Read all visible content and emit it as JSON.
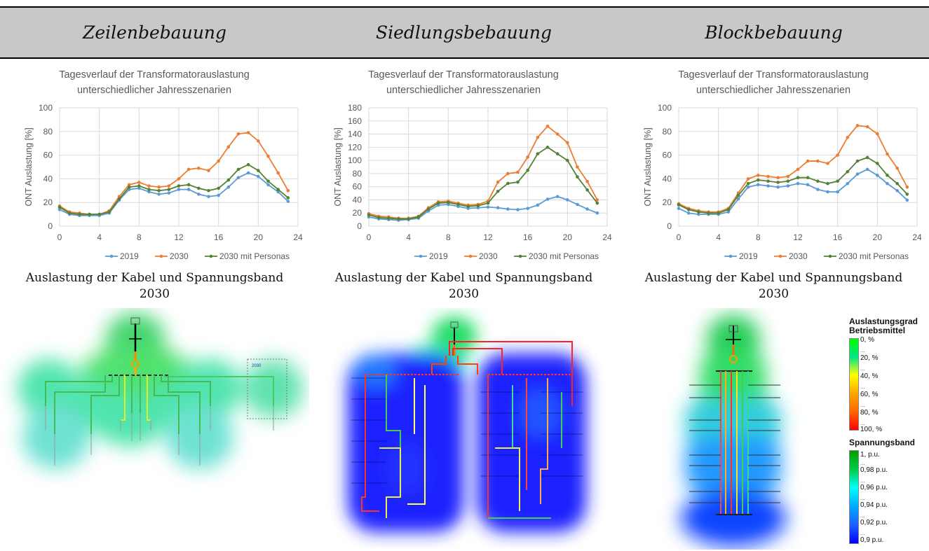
{
  "headers": [
    "Zeilenbebauung",
    "Siedlungsbebauung",
    "Blockbebauung"
  ],
  "map_titles": [
    {
      "line1": "Auslastung der Kabel und Spannungsband",
      "line2": "2030"
    },
    {
      "line1": "Auslastung der Kabel und Spannungsband",
      "line2": "2030"
    },
    {
      "line1": "Auslastung der Kabel und Spannungsband",
      "line2": "2030"
    }
  ],
  "map1_box_label": "2030",
  "chart_data": [
    {
      "type": "line",
      "title": "Tagesverlauf der Transformatorauslastung unterschiedlicher Jahresszenarien",
      "title_lines": [
        "Tagesverlauf der Transformatorauslastung",
        "unterschiedlicher Jahresszenarien"
      ],
      "ylabel": "ONT Auslastung [%]",
      "xlim": [
        0,
        24
      ],
      "ylim": [
        0,
        100
      ],
      "xticks": [
        0,
        4,
        8,
        12,
        16,
        20,
        24
      ],
      "yticks": [
        0,
        20,
        40,
        60,
        80,
        100
      ],
      "grid": true,
      "legend": "bottom",
      "x": [
        0,
        1,
        2,
        3,
        4,
        5,
        6,
        7,
        8,
        9,
        10,
        11,
        12,
        13,
        14,
        15,
        16,
        17,
        18,
        19,
        20,
        21,
        22,
        23
      ],
      "series": [
        {
          "name": "2019",
          "color": "#5b9bd5",
          "values": [
            14,
            10,
            9,
            9,
            9,
            11,
            22,
            31,
            32,
            29,
            27,
            28,
            31,
            31,
            27,
            25,
            26,
            33,
            41,
            45,
            42,
            35,
            29,
            21
          ]
        },
        {
          "name": "2030",
          "color": "#ed7d31",
          "values": [
            17,
            12,
            11,
            10,
            10,
            13,
            25,
            35,
            37,
            34,
            33,
            34,
            40,
            48,
            49,
            47,
            55,
            67,
            78,
            79,
            72,
            59,
            45,
            30
          ]
        },
        {
          "name": "2030 mit Personas",
          "color": "#548235",
          "values": [
            16,
            11,
            10,
            10,
            10,
            12,
            23,
            33,
            34,
            31,
            30,
            31,
            34,
            35,
            32,
            30,
            32,
            39,
            48,
            52,
            47,
            38,
            31,
            24
          ]
        }
      ]
    },
    {
      "type": "line",
      "title": "Tagesverlauf der Transformatorauslastung unterschiedlicher Jahresszenarien",
      "title_lines": [
        "Tagesverlauf der Transformatorauslastung",
        "unterschiedlicher Jahresszenarien"
      ],
      "ylabel": "ONT Auslastung [%]",
      "xlim": [
        0,
        24
      ],
      "ylim": [
        0,
        180
      ],
      "xticks": [
        0,
        4,
        8,
        12,
        16,
        20,
        24
      ],
      "yticks": [
        0,
        20,
        40,
        60,
        80,
        100,
        120,
        140,
        160,
        180
      ],
      "grid": true,
      "legend": "bottom",
      "x": [
        0,
        1,
        2,
        3,
        4,
        5,
        6,
        7,
        8,
        9,
        10,
        11,
        12,
        13,
        14,
        15,
        16,
        17,
        18,
        19,
        20,
        21,
        22,
        23
      ],
      "series": [
        {
          "name": "2019",
          "color": "#5b9bd5",
          "values": [
            14,
            11,
            10,
            9,
            10,
            12,
            23,
            32,
            33,
            30,
            27,
            28,
            29,
            28,
            26,
            25,
            27,
            32,
            41,
            45,
            40,
            33,
            26,
            20
          ]
        },
        {
          "name": "2030",
          "color": "#ed7d31",
          "values": [
            19,
            15,
            14,
            12,
            12,
            15,
            28,
            37,
            38,
            35,
            32,
            33,
            38,
            67,
            80,
            82,
            105,
            135,
            152,
            140,
            127,
            90,
            68,
            40
          ]
        },
        {
          "name": "2030 mit Personas",
          "color": "#548235",
          "values": [
            17,
            13,
            12,
            11,
            11,
            14,
            26,
            35,
            36,
            33,
            30,
            31,
            35,
            53,
            65,
            67,
            85,
            110,
            120,
            110,
            100,
            75,
            55,
            35
          ]
        }
      ]
    },
    {
      "type": "line",
      "title": "Tagesverlauf der Transformatorauslastung unterschiedlicher Jahresszenarien",
      "title_lines": [
        "Tagesverlauf der Transformatorauslastung",
        "unterschiedlicher Jahresszenarien"
      ],
      "ylabel": "ONT Auslastung [%]",
      "xlim": [
        0,
        24
      ],
      "ylim": [
        0,
        100
      ],
      "xticks": [
        0,
        4,
        8,
        12,
        16,
        20,
        24
      ],
      "yticks": [
        0,
        20,
        40,
        60,
        80,
        100
      ],
      "grid": true,
      "legend": "bottom",
      "x": [
        0,
        1,
        2,
        3,
        4,
        5,
        6,
        7,
        8,
        9,
        10,
        11,
        12,
        13,
        14,
        15,
        16,
        17,
        18,
        19,
        20,
        21,
        22,
        23
      ],
      "series": [
        {
          "name": "2019",
          "color": "#5b9bd5",
          "values": [
            15,
            11,
            10,
            10,
            10,
            12,
            23,
            33,
            35,
            34,
            33,
            34,
            36,
            35,
            31,
            29,
            29,
            36,
            44,
            48,
            43,
            36,
            30,
            22
          ]
        },
        {
          "name": "2030",
          "color": "#ed7d31",
          "values": [
            19,
            15,
            13,
            12,
            12,
            15,
            28,
            40,
            43,
            42,
            41,
            42,
            48,
            55,
            55,
            53,
            60,
            75,
            85,
            84,
            78,
            61,
            49,
            33
          ]
        },
        {
          "name": "2030 mit Personas",
          "color": "#548235",
          "values": [
            18,
            14,
            12,
            11,
            11,
            14,
            26,
            36,
            39,
            38,
            37,
            38,
            41,
            41,
            38,
            36,
            38,
            46,
            55,
            58,
            53,
            43,
            36,
            27
          ]
        }
      ]
    }
  ],
  "legend": {
    "util_title_1": "Auslastungsgrad",
    "util_title_2": "Betriebsmittel",
    "util_labels": [
      "0, %",
      "20, %",
      "40, %",
      "60, %",
      "80, %",
      "100, %"
    ],
    "volt_title": "Spannungsband",
    "volt_labels": [
      "1, p.u.",
      "0,98 p.u.",
      "0,96 p.u.",
      "0,94 p.u.",
      "0,92 p.u.",
      "0,9 p.u."
    ],
    "dots": "...",
    "util_colors": [
      "#00ff00",
      "#00e68a",
      "#ffff00",
      "#ffa500",
      "#ff0000"
    ],
    "volt_colors": [
      "#00a000",
      "#00e68a",
      "#00ffff",
      "#1e90ff",
      "#0000ff"
    ]
  }
}
